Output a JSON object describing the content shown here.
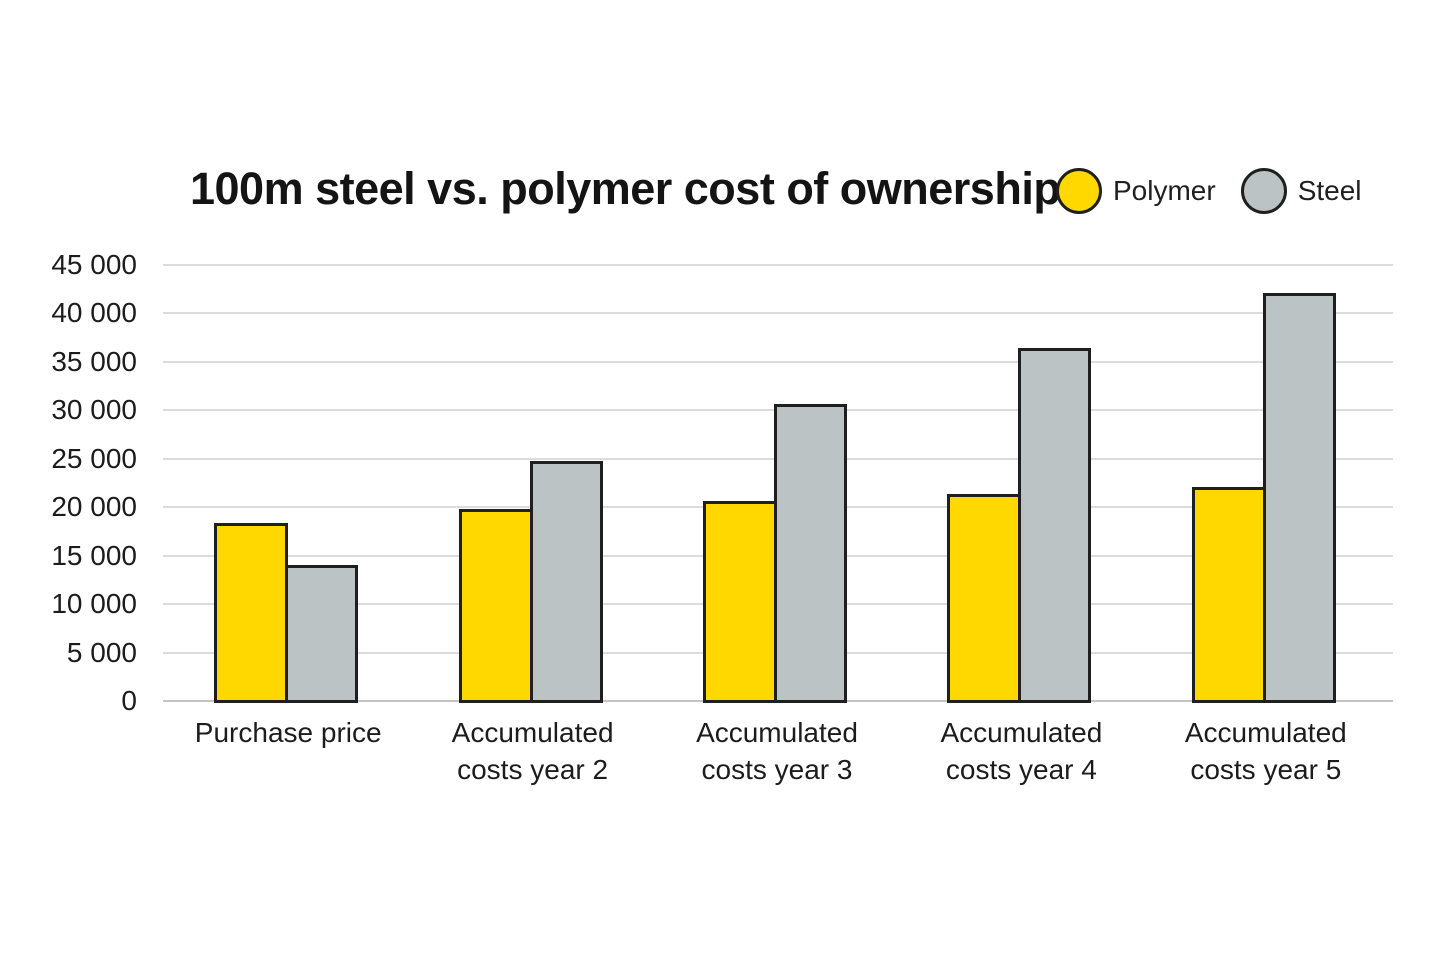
{
  "chart_data": {
    "type": "bar",
    "title": "100m steel vs. polymer cost of ownership",
    "categories": [
      "Purchase price",
      "Accumulated\ncosts year 2",
      "Accumulated\ncosts year 3",
      "Accumulated\ncosts year 4",
      "Accumulated\ncosts year 5"
    ],
    "series": [
      {
        "name": "Polymer",
        "color": "#FFD800",
        "values": [
          18400,
          19800,
          20600,
          21400,
          22100
        ]
      },
      {
        "name": "Steel",
        "color": "#BCC3C4",
        "values": [
          14000,
          24800,
          30700,
          36400,
          42100
        ]
      }
    ],
    "xlabel": "",
    "ylabel": "",
    "ylim": [
      0,
      45000
    ],
    "ytick_step": 5000,
    "ytick_labels": [
      "0",
      "5 000",
      "10 000",
      "15 000",
      "20 000",
      "25 000",
      "30 000",
      "35 000",
      "40 000",
      "45 000"
    ],
    "grid": true,
    "legend_position": "top-right",
    "bar_outline_color": "#1f1f1f",
    "background_color": "#ffffff",
    "gridline_color": "#dcdcdc",
    "zero_line_color": "#c4c4c4",
    "text_color": "#1c1c1c"
  }
}
